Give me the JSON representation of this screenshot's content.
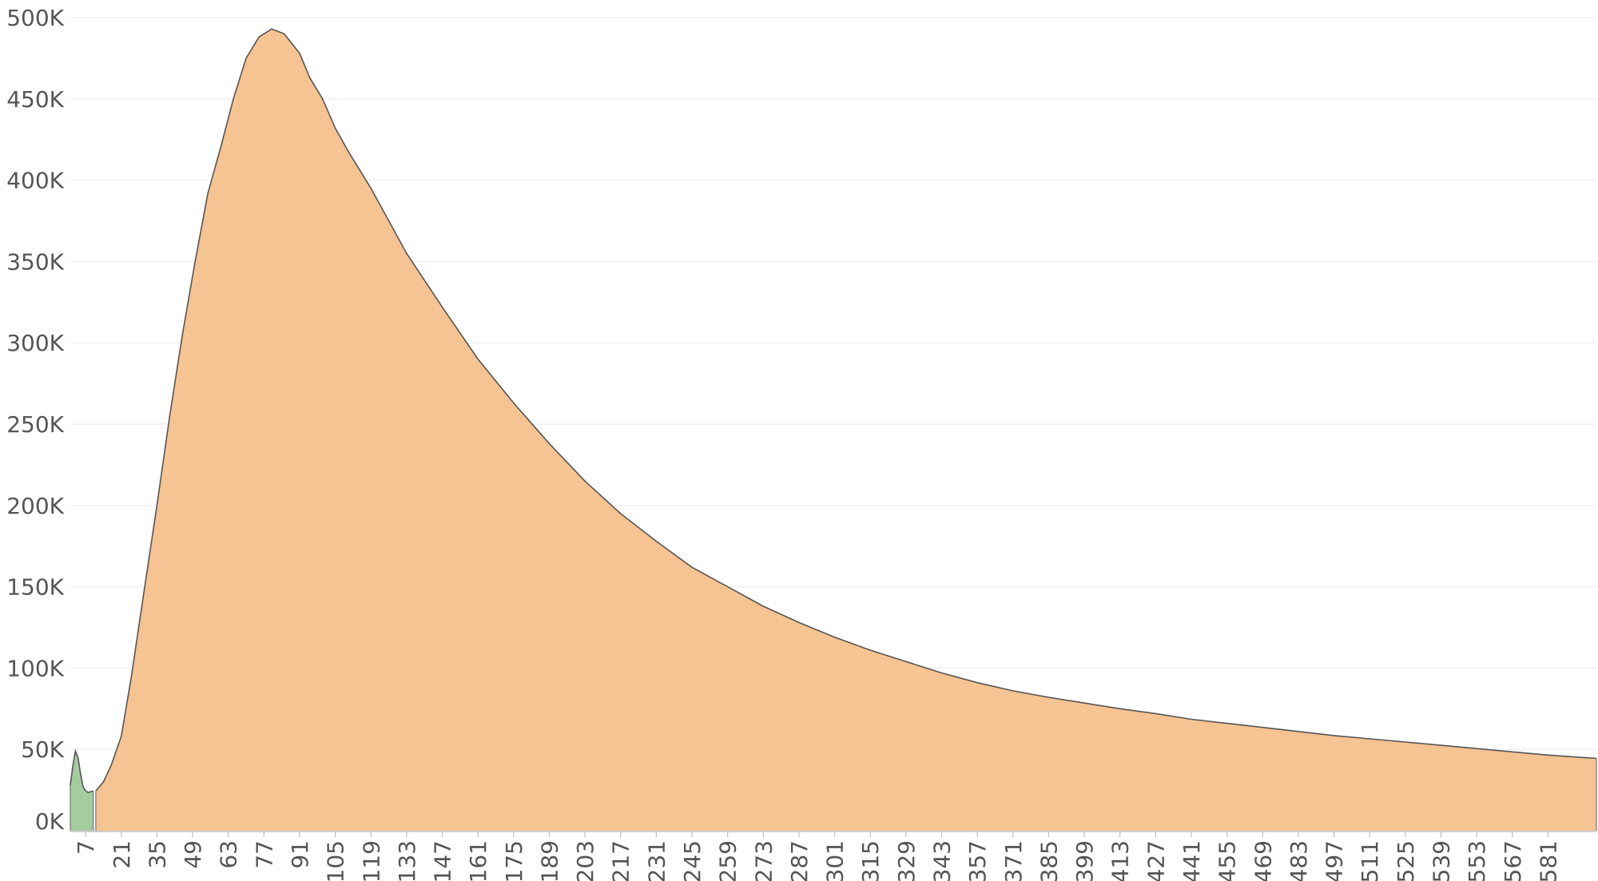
{
  "chart_data": {
    "type": "area",
    "title": "",
    "xlabel": "",
    "ylabel": "",
    "xlim": [
      1,
      600
    ],
    "ylim": [
      0,
      500000
    ],
    "grid": true,
    "y_tick_values": [
      0,
      50000,
      100000,
      150000,
      200000,
      250000,
      300000,
      350000,
      400000,
      450000,
      500000
    ],
    "y_tick_labels": [
      "0K",
      "50K",
      "100K",
      "150K",
      "200K",
      "250K",
      "300K",
      "350K",
      "400K",
      "450K",
      "500K"
    ],
    "x_tick_labels": [
      "7",
      "21",
      "35",
      "49",
      "63",
      "77",
      "91",
      "105",
      "119",
      "133",
      "147",
      "161",
      "175",
      "189",
      "203",
      "217",
      "231",
      "245",
      "259",
      "273",
      "287",
      "301",
      "315",
      "329",
      "343",
      "357",
      "371",
      "385",
      "399",
      "413",
      "427",
      "441",
      "455",
      "469",
      "483",
      "497",
      "511",
      "525",
      "539",
      "553",
      "567",
      "581"
    ],
    "series": [
      {
        "color": "#a5cc9e",
        "x": [
          1,
          2,
          3,
          4,
          5,
          6,
          7,
          8,
          9,
          10
        ],
        "values": [
          28000,
          40000,
          49000,
          45000,
          35000,
          27000,
          24500,
          23500,
          24000,
          24500
        ]
      },
      {
        "color": "#f6c392",
        "x": [
          11,
          14,
          17,
          21,
          25,
          30,
          35,
          40,
          45,
          50,
          55,
          60,
          65,
          70,
          75,
          80,
          85,
          88,
          91,
          95,
          100,
          105,
          110,
          119,
          133,
          147,
          161,
          175,
          189,
          203,
          217,
          231,
          245,
          259,
          273,
          287,
          301,
          315,
          329,
          343,
          357,
          371,
          385,
          399,
          413,
          427,
          441,
          455,
          469,
          483,
          497,
          511,
          525,
          539,
          553,
          567,
          581,
          595,
          600
        ],
        "values": [
          24500,
          30000,
          40000,
          58000,
          95000,
          148000,
          200000,
          255000,
          305000,
          350000,
          392000,
          420000,
          450000,
          475000,
          488000,
          493000,
          490000,
          484000,
          478000,
          463000,
          450000,
          432000,
          418000,
          395000,
          355000,
          322000,
          290000,
          263000,
          238000,
          215000,
          195000,
          178000,
          162000,
          150000,
          138000,
          128000,
          119000,
          111000,
          104000,
          97000,
          91000,
          86000,
          82000,
          78500,
          75000,
          72000,
          68500,
          66000,
          63500,
          61000,
          58500,
          56500,
          54500,
          52500,
          50500,
          48500,
          46500,
          45000,
          44500
        ]
      }
    ]
  }
}
